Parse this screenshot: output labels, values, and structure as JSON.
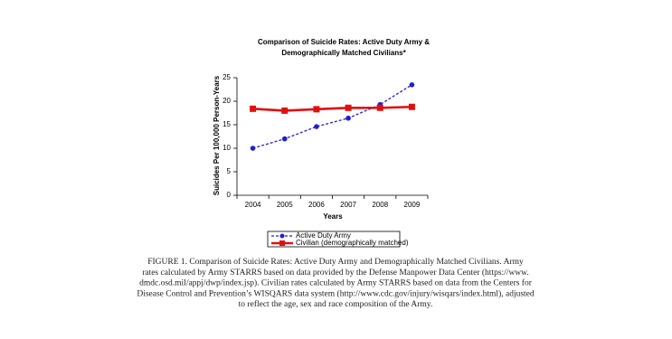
{
  "chart_data": {
    "type": "line",
    "title": [
      "Comparison of Suicide Rates:  Active Duty Army &",
      "Demographically Matched Civilians*"
    ],
    "x_label": "Years",
    "y_label": "Suicides Per 100,000 Person-Years",
    "categories": [
      "2004",
      "2005",
      "2006",
      "2007",
      "2008",
      "2009"
    ],
    "series": [
      {
        "name": "Active Duty Army",
        "color": "#1f1fd6",
        "line_style": "dashed",
        "marker": "circle",
        "values": [
          10.0,
          12.0,
          14.6,
          16.4,
          19.3,
          23.5
        ]
      },
      {
        "name": "Civilian (demographically matched)",
        "color": "#e01010",
        "line_style": "solid",
        "marker": "square",
        "values": [
          18.4,
          18.0,
          18.3,
          18.6,
          18.6,
          18.8
        ]
      }
    ],
    "ylim": [
      0,
      25
    ],
    "yticks": [
      0,
      5,
      10,
      15,
      20,
      25
    ],
    "grid": false,
    "legend": "bottom"
  },
  "caption": [
    "FIGURE 1. Comparison of Suicide Rates: Active Duty Army and Demographically Matched Civilians. Army",
    "rates calculated by Army STARRS based on data provided by the Defense Manpower Data Center (https://www.",
    "dmdc.osd.mil/appj/dwp/index.jsp). Civilian rates calculated by Army STARRS based on data from the Centers for",
    "Disease Control and Prevention’s WISQARS data system (http://www.cdc.gov/injury/wisqars/index.html), adjusted",
    "to reflect the age, sex and race composition of the Army."
  ]
}
